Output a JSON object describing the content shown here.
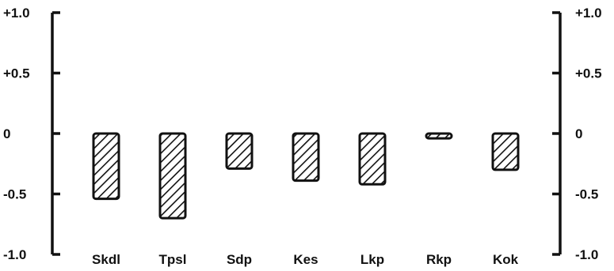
{
  "chart_data": {
    "type": "bar",
    "title": "",
    "xlabel": "",
    "ylabel": "",
    "categories": [
      "Skdl",
      "Tpsl",
      "Sdp",
      "Kes",
      "Lkp",
      "Rkp",
      "Kok"
    ],
    "values": [
      -0.54,
      -0.7,
      -0.29,
      -0.39,
      -0.42,
      -0.04,
      -0.3
    ],
    "ylim": [
      -1.0,
      1.0
    ],
    "y_ticks": [
      1.0,
      0.5,
      0,
      -0.5,
      -1.0
    ],
    "y_tick_labels": [
      "+1.0",
      "+0.5",
      "0",
      "-0.5",
      "-1.0"
    ],
    "bar_fill": "diagonal-hatch",
    "colors": {
      "ink": "#111111",
      "background": "#ffffff"
    },
    "grid": false,
    "legend": "none",
    "axes": "left-and-right"
  }
}
